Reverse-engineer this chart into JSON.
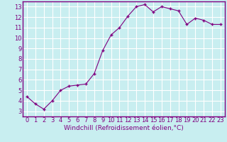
{
  "x": [
    0,
    1,
    2,
    3,
    4,
    5,
    6,
    7,
    8,
    9,
    10,
    11,
    12,
    13,
    14,
    15,
    16,
    17,
    18,
    19,
    20,
    21,
    22,
    23
  ],
  "y": [
    4.4,
    3.7,
    3.2,
    4.0,
    5.0,
    5.4,
    5.5,
    5.6,
    6.6,
    8.8,
    10.3,
    11.0,
    12.1,
    13.0,
    13.2,
    12.5,
    13.0,
    12.8,
    12.6,
    11.3,
    11.9,
    11.7,
    11.3,
    11.3
  ],
  "line_color": "#800080",
  "marker": "+",
  "bg_color": "#c8eef0",
  "grid_color": "#aadddd",
  "xlabel": "Windchill (Refroidissement éolien,°C)",
  "xlim": [
    -0.5,
    23.5
  ],
  "ylim": [
    2.5,
    13.5
  ],
  "yticks": [
    3,
    4,
    5,
    6,
    7,
    8,
    9,
    10,
    11,
    12,
    13
  ],
  "xticks": [
    0,
    1,
    2,
    3,
    4,
    5,
    6,
    7,
    8,
    9,
    10,
    11,
    12,
    13,
    14,
    15,
    16,
    17,
    18,
    19,
    20,
    21,
    22,
    23
  ],
  "xlabel_fontsize": 6.5,
  "tick_fontsize": 6.0,
  "spine_color": "#800080",
  "bottom_spine_color": "#800080",
  "markersize": 3.5,
  "linewidth": 0.8
}
